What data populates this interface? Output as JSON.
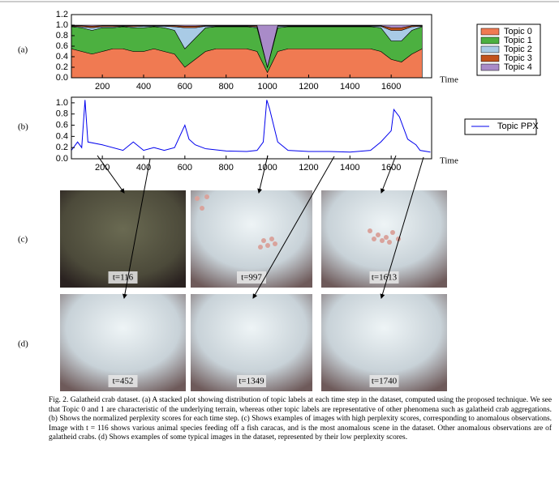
{
  "chart_data": [
    {
      "type": "stacked-area",
      "x_label": "Time",
      "x": [
        50,
        100,
        150,
        200,
        250,
        300,
        350,
        400,
        450,
        500,
        550,
        600,
        650,
        700,
        750,
        800,
        850,
        900,
        950,
        1000,
        1050,
        1100,
        1150,
        1200,
        1250,
        1300,
        1350,
        1400,
        1450,
        1500,
        1550,
        1600,
        1650,
        1700,
        1750
      ],
      "series": [
        {
          "name": "Topic 0",
          "color": "#f07a52",
          "values": [
            0.55,
            0.5,
            0.45,
            0.5,
            0.55,
            0.55,
            0.5,
            0.5,
            0.55,
            0.5,
            0.45,
            0.2,
            0.35,
            0.5,
            0.55,
            0.55,
            0.55,
            0.55,
            0.5,
            0.1,
            0.5,
            0.55,
            0.55,
            0.55,
            0.55,
            0.55,
            0.55,
            0.55,
            0.55,
            0.55,
            0.5,
            0.35,
            0.3,
            0.45,
            0.55
          ]
        },
        {
          "name": "Topic 1",
          "color": "#4cb040",
          "values": [
            0.42,
            0.45,
            0.45,
            0.45,
            0.4,
            0.42,
            0.45,
            0.45,
            0.42,
            0.45,
            0.45,
            0.35,
            0.4,
            0.45,
            0.42,
            0.42,
            0.42,
            0.42,
            0.45,
            0.1,
            0.45,
            0.42,
            0.42,
            0.42,
            0.42,
            0.42,
            0.42,
            0.42,
            0.42,
            0.42,
            0.45,
            0.35,
            0.4,
            0.45,
            0.42
          ]
        },
        {
          "name": "Topic 2",
          "color": "#a9cbe6",
          "values": [
            0.01,
            0.02,
            0.05,
            0.02,
            0.02,
            0.01,
            0.02,
            0.03,
            0.01,
            0.03,
            0.07,
            0.4,
            0.2,
            0.03,
            0.01,
            0.01,
            0.01,
            0.01,
            0.02,
            0,
            0.03,
            0.01,
            0.01,
            0.01,
            0.01,
            0.01,
            0.01,
            0.01,
            0.01,
            0.01,
            0.03,
            0.2,
            0.2,
            0.07,
            0.01
          ]
        },
        {
          "name": "Topic 3",
          "color": "#c2521c",
          "values": [
            0.01,
            0.02,
            0.03,
            0.02,
            0.02,
            0.01,
            0.02,
            0.01,
            0.01,
            0.01,
            0.02,
            0.03,
            0.03,
            0.01,
            0.01,
            0.01,
            0.01,
            0.01,
            0.02,
            0,
            0.01,
            0.01,
            0.01,
            0.01,
            0.01,
            0.01,
            0.01,
            0.01,
            0.01,
            0.01,
            0.01,
            0.05,
            0.05,
            0.02,
            0.01
          ]
        },
        {
          "name": "Topic 4",
          "color": "#a98bc8",
          "values": [
            0.01,
            0.01,
            0.02,
            0.01,
            0.01,
            0.01,
            0.01,
            0.01,
            0.01,
            0.01,
            0.01,
            0.02,
            0.02,
            0.01,
            0.01,
            0.01,
            0.01,
            0.01,
            0.01,
            0.8,
            0.01,
            0.01,
            0.01,
            0.01,
            0.01,
            0.01,
            0.01,
            0.01,
            0.01,
            0.01,
            0.01,
            0.05,
            0.05,
            0.01,
            0.01
          ]
        }
      ],
      "xlim": [
        50,
        1796
      ],
      "xticks": [
        200,
        400,
        600,
        800,
        1000,
        1200,
        1400,
        1600
      ],
      "ylim": [
        0,
        1.2
      ],
      "yticks": [
        {
          "value": 0,
          "label": "0.0"
        },
        0.2,
        0.4,
        0.6,
        0.8,
        {
          "value": 1,
          "label": "1.0"
        },
        1.2
      ]
    },
    {
      "type": "line",
      "x_label": "Time",
      "x": [
        50,
        80,
        100,
        116,
        130,
        200,
        300,
        350,
        400,
        450,
        500,
        550,
        600,
        620,
        650,
        700,
        800,
        900,
        950,
        980,
        997,
        1010,
        1050,
        1100,
        1200,
        1300,
        1400,
        1500,
        1550,
        1600,
        1613,
        1640,
        1680,
        1720,
        1740,
        1790
      ],
      "series": [
        {
          "name": "Topic PPX",
          "color": "#0000ee",
          "values": [
            0.15,
            0.3,
            0.2,
            1.05,
            0.3,
            0.25,
            0.15,
            0.3,
            0.15,
            0.2,
            0.15,
            0.2,
            0.6,
            0.35,
            0.25,
            0.18,
            0.14,
            0.13,
            0.15,
            0.3,
            1.05,
            0.9,
            0.3,
            0.15,
            0.13,
            0.13,
            0.12,
            0.15,
            0.3,
            0.5,
            0.88,
            0.75,
            0.35,
            0.25,
            0.15,
            0.12
          ]
        }
      ],
      "xlim": [
        50,
        1796
      ],
      "xticks": [
        200,
        400,
        600,
        800,
        1000,
        1200,
        1400,
        1600
      ],
      "ylim": [
        0,
        1.1
      ],
      "yticks": [
        {
          "value": 0,
          "label": "0.0"
        },
        0.2,
        0.4,
        0.6,
        0.8,
        {
          "value": 1,
          "label": "1.0"
        }
      ]
    }
  ],
  "panel_labels": [
    "(a)",
    "(b)",
    "(c)",
    "(d)"
  ],
  "images": [
    {
      "label": "t=116"
    },
    {
      "label": "t=997"
    },
    {
      "label": "t=1613"
    },
    {
      "label": "t=452"
    },
    {
      "label": "t=1349"
    },
    {
      "label": "t=1740"
    }
  ],
  "caption": "Fig. 2.   Galatheid crab dataset. (a) A stacked plot showing distribution of topic labels at each time step in the dataset, computed using the proposed technique. We see that Topic 0 and 1 are characteristic of the underlying terrain, whereas other topic labels are representative of other phenomena such as galatheid crab aggregations. (b) Shows the normalized perplexity scores for each time step. (c) Shows examples of images with high perplexity scores, corresponding to anomalous observations. Image with t = 116 shows various animal species feeding off a fish caracas, and is the most anomalous scene in the dataset. Other anomalous observations are of galatheid crabs. (d) Shows examples of some typical images in the dataset, represented by their low perplexity scores."
}
